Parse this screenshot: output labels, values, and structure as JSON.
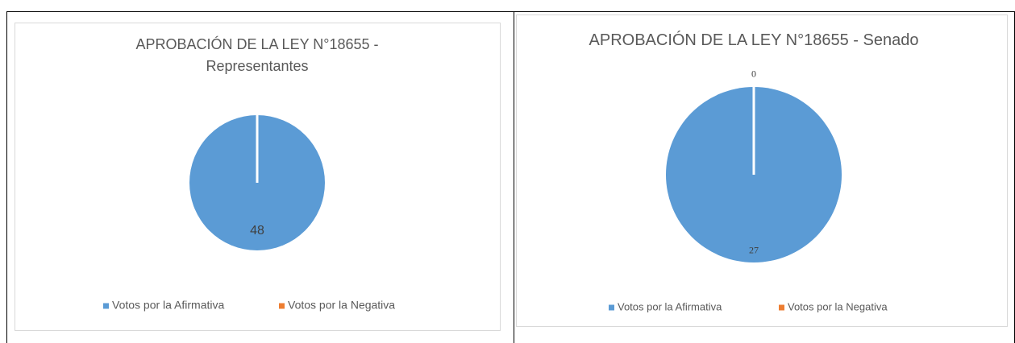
{
  "chart_data": [
    {
      "type": "pie",
      "title": "APROBACIÓN DE LA LEY N°18655 - Representantes",
      "categories": [
        "Votos por la Afirmativa",
        "Votos por la Negativa"
      ],
      "values": [
        48,
        0
      ],
      "colors": [
        "#5b9bd5",
        "#ed7d31"
      ],
      "zero_labels": false,
      "legend": "bottom"
    },
    {
      "type": "pie",
      "title": "APROBACIÓN DE LA LEY N°18655 - Senado",
      "categories": [
        "Votos por la Afirmativa",
        "Votos por la Negativa"
      ],
      "values": [
        27,
        0
      ],
      "colors": [
        "#5b9bd5",
        "#ed7d31"
      ],
      "zero_labels": true,
      "legend": "bottom"
    }
  ]
}
